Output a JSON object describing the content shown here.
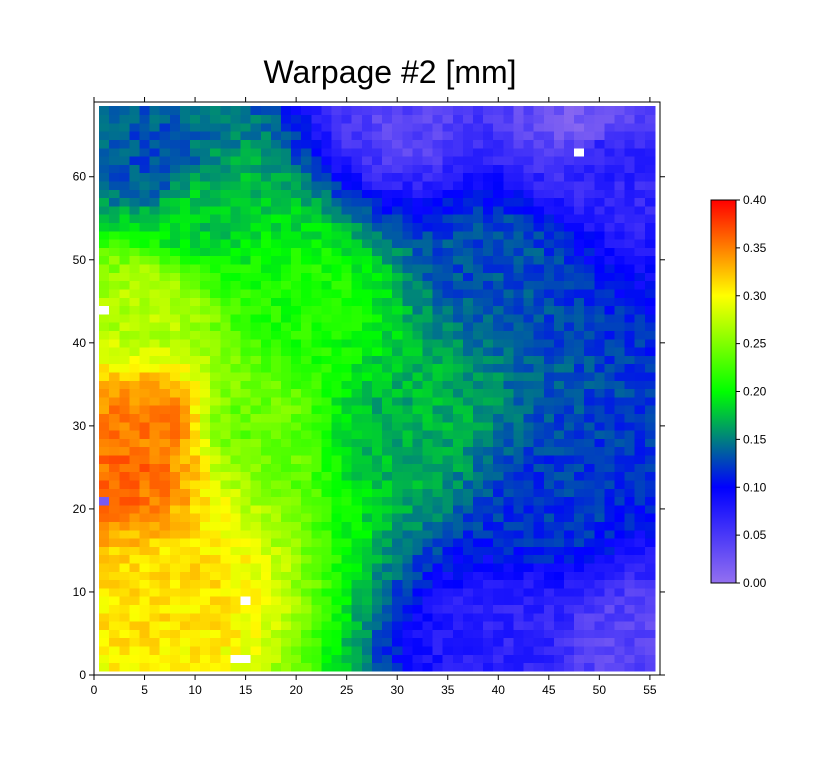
{
  "chart_data": {
    "type": "heatmap",
    "title": "Warpage #2 [mm]",
    "xlabel": "",
    "ylabel": "",
    "xlim": [
      0,
      56
    ],
    "ylim": [
      0,
      69
    ],
    "x_ticks": [
      0,
      5,
      10,
      15,
      20,
      25,
      30,
      35,
      40,
      45,
      50,
      55
    ],
    "y_ticks": [
      0,
      10,
      20,
      30,
      40,
      50,
      60
    ],
    "grid": false,
    "colorbar": {
      "min": 0.0,
      "max": 0.4,
      "ticks": [
        "0.00",
        "0.05",
        "0.10",
        "0.15",
        "0.20",
        "0.25",
        "0.30",
        "0.35",
        "0.40"
      ],
      "colors": [
        "#9370f0",
        "#0000ff",
        "#00ff00",
        "#ffff00",
        "#ff0000"
      ]
    },
    "cells_x": 55,
    "cells_y": 68,
    "field_description_points": [
      {
        "x": 3,
        "y": 25,
        "value": 0.36
      },
      {
        "x": 5,
        "y": 30,
        "value": 0.35
      },
      {
        "x": 8,
        "y": 10,
        "value": 0.31
      },
      {
        "x": 5,
        "y": 45,
        "value": 0.27
      },
      {
        "x": 15,
        "y": 30,
        "value": 0.24
      },
      {
        "x": 20,
        "y": 45,
        "value": 0.21
      },
      {
        "x": 10,
        "y": 55,
        "value": 0.18
      },
      {
        "x": 30,
        "y": 30,
        "value": 0.17
      },
      {
        "x": 5,
        "y": 62,
        "value": 0.13
      },
      {
        "x": 40,
        "y": 50,
        "value": 0.13
      },
      {
        "x": 45,
        "y": 20,
        "value": 0.12
      },
      {
        "x": 40,
        "y": 5,
        "value": 0.07
      },
      {
        "x": 50,
        "y": 62,
        "value": 0.07
      },
      {
        "x": 52,
        "y": 4,
        "value": 0.04
      },
      {
        "x": 30,
        "y": 67,
        "value": 0.04
      },
      {
        "x": 48,
        "y": 67,
        "value": 0.02
      }
    ],
    "missing_cells": [
      {
        "x": 47.5,
        "y": 63
      },
      {
        "x": 0.5,
        "y": 44
      },
      {
        "x": 14.5,
        "y": 9
      },
      {
        "x": 13.5,
        "y": 2
      },
      {
        "x": 14.5,
        "y": 2
      }
    ],
    "outlier_cells": [
      {
        "x": 0.5,
        "y": 21,
        "value": 0.02
      }
    ]
  }
}
